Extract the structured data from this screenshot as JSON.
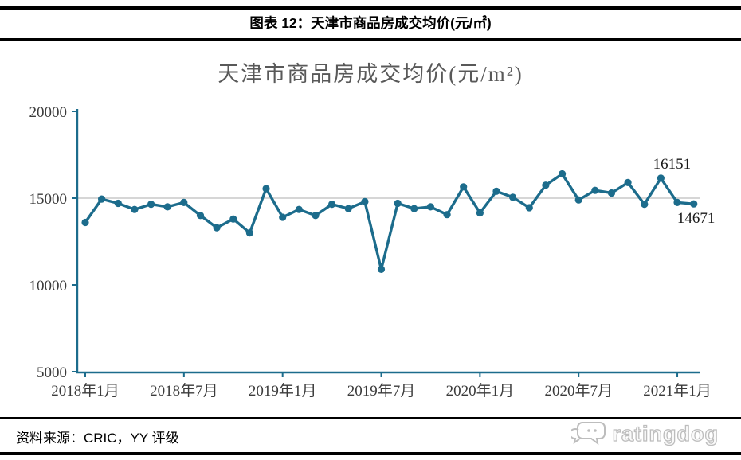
{
  "header": {
    "title": "图表 12：天津市商品房成交均价(元/㎡)"
  },
  "chart_data": {
    "type": "line",
    "title": "天津市商品房成交均价(元/m²)",
    "categories": [
      "2018年1月",
      "2018年2月",
      "2018年3月",
      "2018年4月",
      "2018年5月",
      "2018年6月",
      "2018年7月",
      "2018年8月",
      "2018年9月",
      "2018年10月",
      "2018年11月",
      "2018年12月",
      "2019年1月",
      "2019年2月",
      "2019年3月",
      "2019年4月",
      "2019年5月",
      "2019年6月",
      "2019年7月",
      "2019年8月",
      "2019年9月",
      "2019年10月",
      "2019年11月",
      "2019年12月",
      "2020年1月",
      "2020年2月",
      "2020年3月",
      "2020年4月",
      "2020年5月",
      "2020年6月",
      "2020年7月",
      "2020年8月",
      "2020年9月",
      "2020年10月",
      "2020年11月",
      "2020年12月",
      "2021年1月",
      "2021年2月"
    ],
    "values": [
      13600,
      14950,
      14700,
      14350,
      14650,
      14500,
      14750,
      14000,
      13300,
      13800,
      13000,
      15550,
      13900,
      14350,
      14000,
      14650,
      14400,
      14800,
      10900,
      14700,
      14400,
      14500,
      14050,
      15650,
      14150,
      15400,
      15050,
      14450,
      15750,
      16400,
      14900,
      15450,
      15300,
      15900,
      14650,
      16151,
      14750,
      14671
    ],
    "x_ticks": [
      {
        "index": 0,
        "label": "2018年1月"
      },
      {
        "index": 6,
        "label": "2018年7月"
      },
      {
        "index": 12,
        "label": "2019年1月"
      },
      {
        "index": 18,
        "label": "2019年7月"
      },
      {
        "index": 24,
        "label": "2020年1月"
      },
      {
        "index": 30,
        "label": "2020年7月"
      },
      {
        "index": 36,
        "label": "2021年1月"
      }
    ],
    "y_ticks": [
      5000,
      10000,
      15000,
      20000
    ],
    "ylim": [
      5000,
      20000
    ],
    "gridlines": [
      15000
    ],
    "legend_position": "none",
    "annotations": [
      {
        "index": 35,
        "category": "2020年12月",
        "value": 16151,
        "label": "16151",
        "placement": "above"
      },
      {
        "index": 37,
        "category": "2021年2月",
        "value": 14671,
        "label": "14671",
        "placement": "below"
      }
    ],
    "colors": {
      "series": "#1c6c8c",
      "axis": "#1c6c8c",
      "gridline": "#c8c8c8",
      "title": "#595959",
      "tick_labels": "#3b3b3b",
      "data_labels": "#1a1a1a"
    }
  },
  "footer": {
    "source": "资料来源：CRIC，YY 评级",
    "brand": "ratingdog"
  }
}
